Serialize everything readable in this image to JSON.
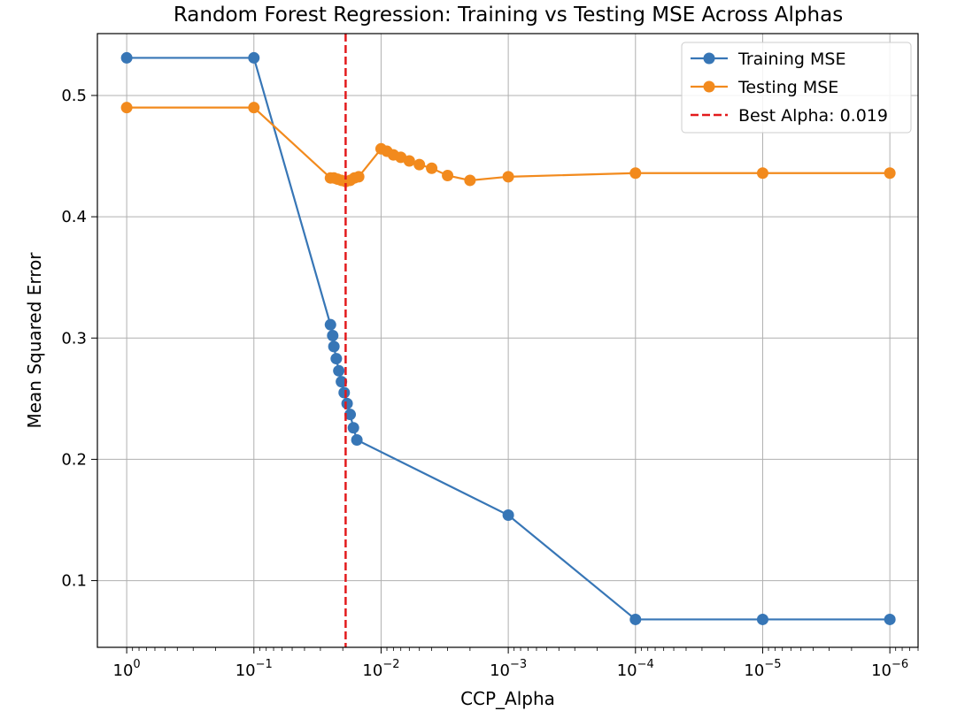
{
  "chart_data": {
    "type": "line",
    "title": "Random Forest Regression: Training vs Testing MSE Across Alphas",
    "xlabel": "CCP_Alpha",
    "ylabel": "Mean Squared Error",
    "x_scale": "log",
    "x_inverted": true,
    "xlim": [
      1.7,
      6e-07
    ],
    "ylim": [
      0.045,
      0.551
    ],
    "grid": true,
    "legend_position": "top-right",
    "x_ticks": [
      {
        "value": 1,
        "base": "10",
        "exp": "0"
      },
      {
        "value": 0.1,
        "base": "10",
        "exp": "−1"
      },
      {
        "value": 0.01,
        "base": "10",
        "exp": "−2"
      },
      {
        "value": 0.001,
        "base": "10",
        "exp": "−3"
      },
      {
        "value": 0.0001,
        "base": "10",
        "exp": "−4"
      },
      {
        "value": 1e-05,
        "base": "10",
        "exp": "−5"
      },
      {
        "value": 1e-06,
        "base": "10",
        "exp": "−6"
      }
    ],
    "y_ticks": [
      {
        "value": 0.1,
        "label": "0.1"
      },
      {
        "value": 0.2,
        "label": "0.2"
      },
      {
        "value": 0.3,
        "label": "0.3"
      },
      {
        "value": 0.4,
        "label": "0.4"
      },
      {
        "value": 0.5,
        "label": "0.5"
      }
    ],
    "series": [
      {
        "name": "Training MSE",
        "color": "#3776b6",
        "x": [
          1,
          0.1,
          0.025,
          0.024,
          0.0235,
          0.0225,
          0.0215,
          0.0205,
          0.0195,
          0.0185,
          0.0175,
          0.0165,
          0.0155,
          0.001,
          0.0001,
          1e-05,
          1e-06
        ],
        "y": [
          0.531,
          0.531,
          0.311,
          0.302,
          0.293,
          0.283,
          0.273,
          0.264,
          0.255,
          0.246,
          0.237,
          0.226,
          0.216,
          0.154,
          0.068,
          0.068,
          0.068
        ]
      },
      {
        "name": "Testing MSE",
        "color": "#f28a1d",
        "x": [
          1,
          0.1,
          0.025,
          0.0235,
          0.022,
          0.0205,
          0.019,
          0.0175,
          0.0162,
          0.015,
          0.01,
          0.009,
          0.008,
          0.007,
          0.006,
          0.005,
          0.004,
          0.003,
          0.002,
          0.001,
          0.0001,
          1e-05,
          1e-06
        ],
        "y": [
          0.49,
          0.49,
          0.432,
          0.432,
          0.431,
          0.43,
          0.429,
          0.43,
          0.432,
          0.433,
          0.456,
          0.454,
          0.451,
          0.449,
          0.446,
          0.443,
          0.44,
          0.434,
          0.43,
          0.433,
          0.436,
          0.436,
          0.436
        ]
      }
    ],
    "reference_line": {
      "name": "Best Alpha: 0.019",
      "x": 0.019,
      "color": "#e31a1c",
      "style": "dashed"
    }
  }
}
